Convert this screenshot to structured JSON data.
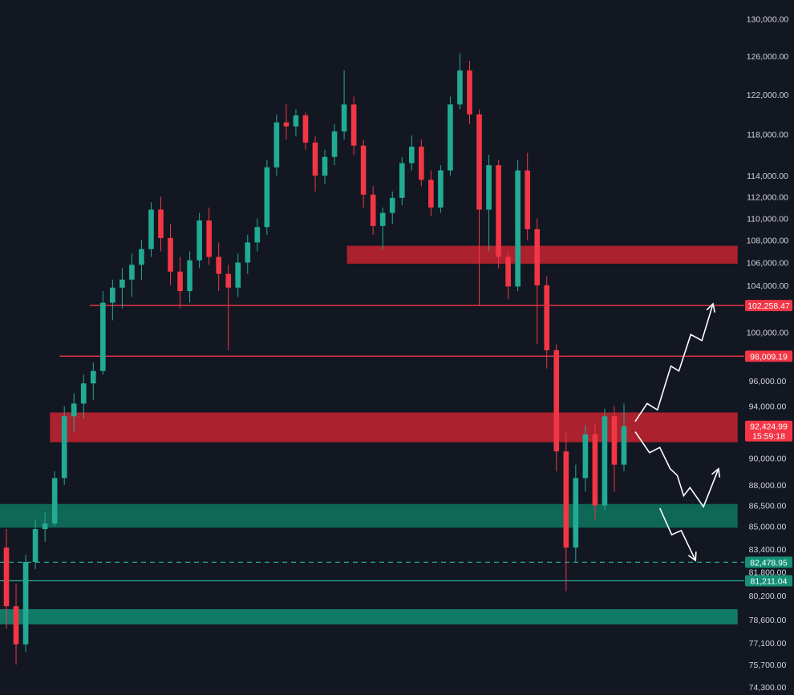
{
  "chart_data": {
    "type": "candlestick",
    "title": "",
    "xlabel": "",
    "ylabel": "",
    "y_scale": "log",
    "ylim": [
      74300,
      131000
    ],
    "grid": false,
    "y_ticks": [
      130000,
      126000,
      122000,
      118000,
      114000,
      112000,
      110000,
      108000,
      106000,
      104000,
      100000,
      96000,
      94000,
      90000,
      88000,
      86500,
      85000,
      83400,
      81800,
      80200,
      78600,
      77100,
      75700,
      74300
    ],
    "y_tick_labels": [
      "130,000.00",
      "126,000.00",
      "122,000.00",
      "118,000.00",
      "114,000.00",
      "112,000.00",
      "110,000.00",
      "108,000.00",
      "106,000.00",
      "104,000.00",
      "100,000.00",
      "96,000.00",
      "94,000.00",
      "90,000.00",
      "88,000.00",
      "86,500.00",
      "85,000.00",
      "83,400.00",
      "81,800.00",
      "80,200.00",
      "78,600.00",
      "77,100.00",
      "75,700.00",
      "74,300.00"
    ],
    "candles_ohlc": [
      [
        83500,
        84800,
        78000,
        79500
      ],
      [
        79500,
        81000,
        75700,
        77000
      ],
      [
        77000,
        83000,
        76500,
        82500
      ],
      [
        82500,
        85500,
        82000,
        84800
      ],
      [
        84800,
        86000,
        83900,
        85200
      ],
      [
        85200,
        89000,
        85000,
        88500
      ],
      [
        88500,
        94000,
        88000,
        93200
      ],
      [
        93200,
        95000,
        92000,
        94200
      ],
      [
        94200,
        96500,
        93000,
        95800
      ],
      [
        95800,
        97500,
        94500,
        96800
      ],
      [
        96800,
        103500,
        96500,
        102500
      ],
      [
        102500,
        104500,
        101000,
        103800
      ],
      [
        103800,
        105500,
        102000,
        104500
      ],
      [
        104500,
        106800,
        103000,
        105800
      ],
      [
        105800,
        108000,
        104500,
        107200
      ],
      [
        107200,
        111500,
        106500,
        110800
      ],
      [
        110800,
        112000,
        107000,
        108200
      ],
      [
        108200,
        109500,
        104000,
        105200
      ],
      [
        105200,
        106500,
        102000,
        103500
      ],
      [
        103500,
        107000,
        102500,
        106200
      ],
      [
        106200,
        110500,
        105500,
        109800
      ],
      [
        109800,
        111000,
        105800,
        106500
      ],
      [
        106500,
        107800,
        103500,
        105000
      ],
      [
        105000,
        105800,
        98500,
        103800
      ],
      [
        103800,
        106800,
        103000,
        106000
      ],
      [
        106000,
        108500,
        105000,
        107800
      ],
      [
        107800,
        110000,
        107000,
        109200
      ],
      [
        109200,
        115500,
        108500,
        114800
      ],
      [
        114800,
        120000,
        114000,
        119200
      ],
      [
        119200,
        121000,
        117500,
        118800
      ],
      [
        118800,
        120500,
        117800,
        119900
      ],
      [
        119900,
        120200,
        116500,
        117200
      ],
      [
        117200,
        117800,
        112500,
        114000
      ],
      [
        114000,
        116500,
        113200,
        115800
      ],
      [
        115800,
        119000,
        115000,
        118300
      ],
      [
        118300,
        124500,
        117500,
        121000
      ],
      [
        121000,
        121800,
        116000,
        116900
      ],
      [
        116900,
        117500,
        111000,
        112200
      ],
      [
        112200,
        113000,
        108500,
        109300
      ],
      [
        109300,
        111000,
        107200,
        110500
      ],
      [
        110500,
        112500,
        109500,
        111900
      ],
      [
        111900,
        115800,
        111200,
        115200
      ],
      [
        115200,
        117900,
        114500,
        116800
      ],
      [
        116800,
        117500,
        113000,
        113600
      ],
      [
        113600,
        114500,
        110200,
        111000
      ],
      [
        111000,
        115000,
        110500,
        114500
      ],
      [
        114500,
        121800,
        114000,
        121000
      ],
      [
        121000,
        126300,
        120500,
        124500
      ],
      [
        124500,
        125500,
        119000,
        120000
      ],
      [
        120000,
        120500,
        102200,
        110800
      ],
      [
        110800,
        116000,
        107000,
        115000
      ],
      [
        115000,
        115500,
        105500,
        106500
      ],
      [
        106500,
        107000,
        102800,
        103900
      ],
      [
        103900,
        115500,
        103500,
        114500
      ],
      [
        114500,
        116200,
        108000,
        109000
      ],
      [
        109000,
        110000,
        99000,
        104000
      ],
      [
        104000,
        104800,
        97000,
        98500
      ],
      [
        98500,
        99000,
        89000,
        90500
      ],
      [
        90500,
        92000,
        80500,
        83500
      ],
      [
        83500,
        89500,
        82500,
        88500
      ],
      [
        88500,
        92500,
        87500,
        91800
      ],
      [
        91800,
        92600,
        85500,
        86500
      ],
      [
        86500,
        93800,
        86200,
        93200
      ],
      [
        93200,
        94000,
        87500,
        89500
      ],
      [
        89500,
        94200,
        89000,
        92425
      ]
    ]
  },
  "annotations": {
    "resistance_zones": [
      {
        "low": 105900,
        "high": 107500
      },
      {
        "low": 91200,
        "high": 93500
      }
    ],
    "support_zones": [
      {
        "low": 84900,
        "high": 86600
      },
      {
        "low": 78300,
        "high": 79300
      }
    ],
    "levels": [
      {
        "value": 102258.47,
        "label": "102,258.47",
        "color": "#f23645",
        "style": "solid",
        "from": 0.113
      },
      {
        "value": 98009.19,
        "label": "98,009.19",
        "color": "#f23645",
        "style": "solid",
        "from": 0.075
      },
      {
        "value": 82478.95,
        "label": "82,478.95",
        "color": "#22ab94",
        "style": "dashed",
        "from": 0.0
      },
      {
        "value": 81211.04,
        "label": "81,211.04",
        "color": "#22ab94",
        "style": "solid",
        "from": 0.0
      }
    ],
    "last_price": {
      "value": 92424.99,
      "label": "92,424.99",
      "countdown": "15:59:18"
    },
    "projection_paths": [
      [
        [
          0.8,
          92800
        ],
        [
          0.815,
          94200
        ],
        [
          0.828,
          93700
        ],
        [
          0.845,
          97200
        ],
        [
          0.855,
          96800
        ],
        [
          0.87,
          99800
        ],
        [
          0.884,
          99300
        ],
        [
          0.898,
          102400
        ]
      ],
      [
        [
          0.8,
          92000
        ],
        [
          0.818,
          90400
        ],
        [
          0.831,
          90800
        ],
        [
          0.844,
          89200
        ],
        [
          0.853,
          88700
        ],
        [
          0.861,
          87200
        ],
        [
          0.869,
          87800
        ],
        [
          0.886,
          86400
        ],
        [
          0.905,
          89200
        ]
      ],
      [
        [
          0.831,
          86300
        ],
        [
          0.846,
          84400
        ],
        [
          0.858,
          84700
        ],
        [
          0.876,
          82600
        ]
      ]
    ]
  },
  "colors": {
    "background": "#131722",
    "up_candle": "#22ab94",
    "down_candle": "#f23645",
    "resistance_zone": "#b3232f",
    "support_zone": "#0f6b58",
    "support_zone_bright": "#11806a",
    "arrow": "#ffffff",
    "axis_text": "#d1d4dc"
  }
}
